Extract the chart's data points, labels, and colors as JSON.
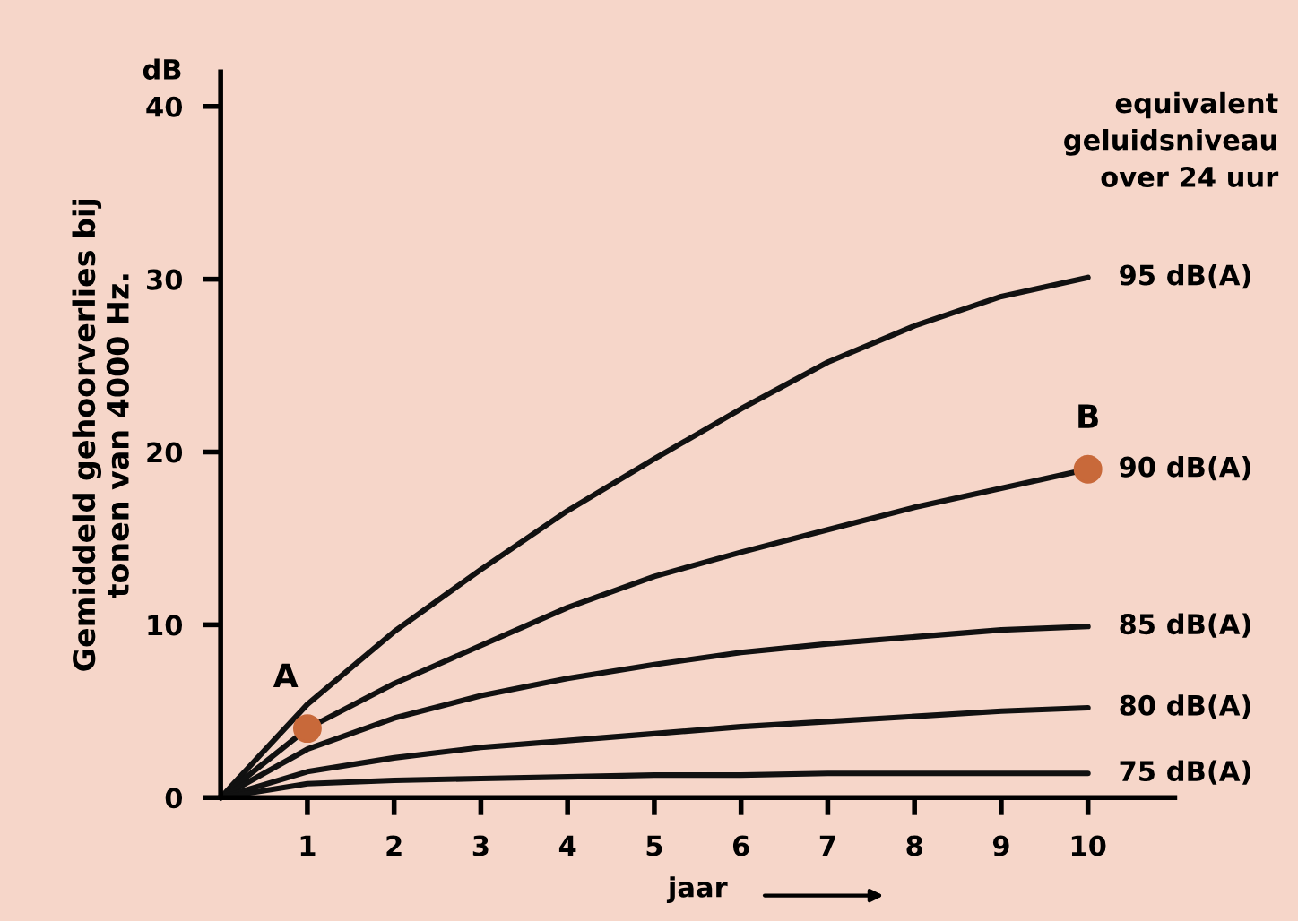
{
  "chart_data": {
    "type": "line",
    "xlabel": "jaar",
    "ylabel": "Gemiddeld gehoorverlies bij\ntonen van 4000 Hz.",
    "x": [
      0,
      1,
      2,
      3,
      4,
      5,
      6,
      7,
      8,
      9,
      10
    ],
    "series": [
      {
        "name": "95 dB(A)",
        "color": "#111111",
        "values": [
          0,
          5.4,
          9.6,
          13.2,
          16.6,
          19.6,
          22.5,
          25.2,
          27.3,
          29.0,
          30.1
        ]
      },
      {
        "name": "90 dB(A)",
        "color": "#111111",
        "values": [
          0,
          4.0,
          6.6,
          8.8,
          11.0,
          12.8,
          14.2,
          15.5,
          16.8,
          17.9,
          19.0
        ]
      },
      {
        "name": "85 dB(A)",
        "color": "#111111",
        "values": [
          0,
          2.8,
          4.6,
          5.9,
          6.9,
          7.7,
          8.4,
          8.9,
          9.3,
          9.7,
          9.9
        ]
      },
      {
        "name": "80 dB(A)",
        "color": "#111111",
        "values": [
          0,
          1.5,
          2.3,
          2.9,
          3.3,
          3.7,
          4.1,
          4.4,
          4.7,
          5.0,
          5.2
        ]
      },
      {
        "name": "75 dB(A)",
        "color": "#111111",
        "values": [
          0,
          0.8,
          1.0,
          1.1,
          1.2,
          1.3,
          1.3,
          1.4,
          1.4,
          1.4,
          1.4
        ]
      },
      {
        "type": "scatter",
        "marker": "circle",
        "color": "#c8693a",
        "x": [
          1,
          10
        ],
        "values": [
          4.0,
          19.0
        ]
      }
    ],
    "annotations": [
      "dB",
      "equivalent\ngeluidsniveau\nover 24 uur",
      {
        "text": "A",
        "x": 1,
        "y": 4.0
      },
      {
        "text": "B",
        "x": 10,
        "y": 19.0
      }
    ],
    "xlim": [
      0,
      11
    ],
    "ylim": [
      0,
      42
    ],
    "xticks": [
      1,
      2,
      3,
      4,
      5,
      6,
      7,
      8,
      9,
      10
    ],
    "yticks": [
      {
        "value": 0,
        "label": "0"
      },
      10,
      20,
      30,
      40
    ],
    "grid": false,
    "legend": false,
    "marker": "none",
    "line_style": "solid"
  }
}
